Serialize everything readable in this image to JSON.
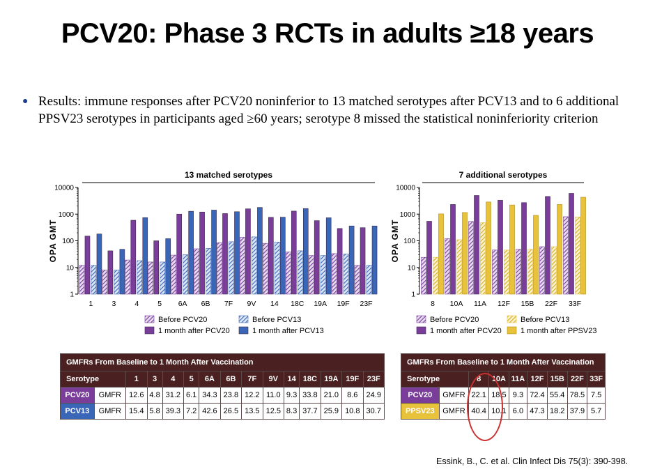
{
  "title": "PCV20: Phase 3 RCTs in adults ≥18 years",
  "bullet": "Results: immune responses after PCV20 noninferior to 13 matched serotypes after PCV13 and to 6 additional PPSV23 serotypes in participants aged ≥60 years; serotype 8 missed the statistical noninferiority criterion",
  "citation": "Essink, B., C. et al. Clin Infect Dis 75(3): 390-398.",
  "colors": {
    "pcv20": "#7a3d9a",
    "pcv13": "#3a66b8",
    "ppsv23": "#e8c23a",
    "table_header": "#4a2020",
    "highlight": "#c83030"
  },
  "chart_data": [
    {
      "type": "bar",
      "title": "13 matched serotypes",
      "ylabel": "OPA GMT",
      "yscale": "log",
      "ylim": [
        1,
        10000
      ],
      "yticks": [
        "1",
        "10",
        "100",
        "1000",
        "10000"
      ],
      "categories": [
        "1",
        "3",
        "4",
        "5",
        "6A",
        "6B",
        "7F",
        "9V",
        "14",
        "18C",
        "19A",
        "19F",
        "23F"
      ],
      "series": [
        {
          "name": "Before PCV20",
          "pattern": "hatched",
          "color": "#7a3d9a",
          "values": [
            12,
            8,
            19,
            16,
            29,
            50,
            85,
            135,
            80,
            38,
            28,
            33,
            12
          ]
        },
        {
          "name": "1 month after PCV20",
          "pattern": "solid",
          "color": "#7a3d9a",
          "values": [
            150,
            42,
            590,
            100,
            1000,
            1200,
            1050,
            1580,
            760,
            1300,
            570,
            290,
            310
          ]
        },
        {
          "name": "Before PCV13",
          "pattern": "hatched",
          "color": "#3a66b8",
          "values": [
            12,
            8,
            18,
            16,
            30,
            52,
            92,
            140,
            90,
            42,
            28,
            32,
            12
          ]
        },
        {
          "name": "1 month after PCV13",
          "pattern": "solid",
          "color": "#3a66b8",
          "values": [
            180,
            48,
            740,
            120,
            1280,
            1420,
            1230,
            1780,
            770,
            1620,
            730,
            360,
            360
          ]
        }
      ],
      "legend": [
        "Before PCV20",
        "Before PCV13",
        "1 month after PCV20",
        "1 month after PCV13"
      ]
    },
    {
      "type": "bar",
      "title": "7 additional serotypes",
      "ylabel": "OPA GMT",
      "yscale": "log",
      "ylim": [
        1,
        10000
      ],
      "yticks": [
        "1",
        "10",
        "100",
        "1000",
        "10000"
      ],
      "categories": [
        "8",
        "10A",
        "11A",
        "12F",
        "15B",
        "22F",
        "33F"
      ],
      "series": [
        {
          "name": "Before PCV20",
          "pattern": "hatched",
          "color": "#7a3d9a",
          "values": [
            24,
            120,
            530,
            45,
            48,
            60,
            800
          ]
        },
        {
          "name": "1 month after PCV20",
          "pattern": "solid",
          "color": "#7a3d9a",
          "values": [
            540,
            2300,
            5000,
            3300,
            2700,
            4600,
            6000
          ]
        },
        {
          "name": "Before PCV13",
          "pattern": "hatched",
          "color": "#e8c23a",
          "values": [
            24,
            110,
            480,
            45,
            48,
            60,
            780
          ]
        },
        {
          "name": "1 month after PPSV23",
          "pattern": "solid",
          "color": "#e8c23a",
          "values": [
            1020,
            1150,
            2850,
            2200,
            900,
            2300,
            4300
          ]
        }
      ],
      "legend": [
        "Before PCV20",
        "Before PCV13",
        "1 month after PCV20",
        "1 month after PPSV23"
      ]
    }
  ],
  "table_left": {
    "header": "GMFRs From Baseline to 1 Month After Vaccination",
    "serotype_label": "Serotype",
    "columns": [
      "1",
      "3",
      "4",
      "5",
      "6A",
      "6B",
      "7F",
      "9V",
      "14",
      "18C",
      "19A",
      "19F",
      "23F"
    ],
    "rows": [
      {
        "label": "PCV20",
        "metric": "GMFR",
        "values": [
          "12.6",
          "4.8",
          "31.2",
          "6.1",
          "34.3",
          "23.8",
          "12.2",
          "11.0",
          "9.3",
          "33.8",
          "21.0",
          "8.6",
          "24.9"
        ]
      },
      {
        "label": "PCV13",
        "metric": "GMFR",
        "values": [
          "15.4",
          "5.8",
          "39.3",
          "7.2",
          "42.6",
          "26.5",
          "13.5",
          "12.5",
          "8.3",
          "37.7",
          "25.9",
          "10.8",
          "30.7"
        ]
      }
    ]
  },
  "table_right": {
    "header": "GMFRs From Baseline to 1 Month After Vaccination",
    "serotype_label": "Serotype",
    "columns": [
      "8",
      "10A",
      "11A",
      "12F",
      "15B",
      "22F",
      "33F"
    ],
    "rows": [
      {
        "label": "PCV20",
        "metric": "GMFR",
        "values": [
          "22.1",
          "18.5",
          "9.3",
          "72.4",
          "55.4",
          "78.5",
          "7.5"
        ]
      },
      {
        "label": "PPSV23",
        "metric": "GMFR",
        "values": [
          "40.4",
          "10.1",
          "6.0",
          "47.3",
          "18.2",
          "37.9",
          "5.7"
        ]
      }
    ]
  }
}
